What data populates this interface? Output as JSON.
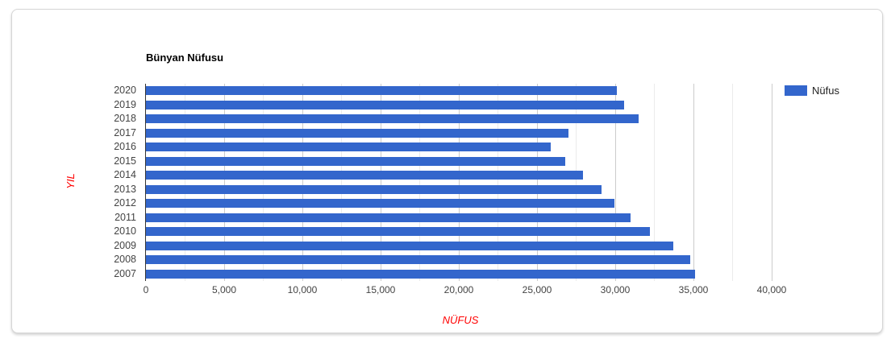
{
  "chart_data": {
    "type": "bar",
    "orientation": "horizontal",
    "title": "Bünyan Nüfusu",
    "xlabel": "NÜFUS",
    "ylabel": "YIL",
    "categories": [
      "2020",
      "2019",
      "2018",
      "2017",
      "2016",
      "2015",
      "2014",
      "2013",
      "2012",
      "2011",
      "2010",
      "2009",
      "2008",
      "2007"
    ],
    "values": [
      30100,
      30550,
      31500,
      27000,
      25900,
      26800,
      27950,
      29100,
      29950,
      31000,
      32200,
      33700,
      34800,
      35100
    ],
    "series_name": "Nüfus",
    "xlim": [
      0,
      40155
    ],
    "xticks": [
      0,
      5000,
      10000,
      15000,
      20000,
      25000,
      30000,
      35000,
      40000
    ],
    "xtick_labels": [
      "0",
      "5,000",
      "10,000",
      "15,000",
      "20,000",
      "25,000",
      "30,000",
      "35,000",
      "40,000"
    ],
    "gridlines": {
      "minor_step": 2500,
      "major_step": 5000,
      "max": 40000
    },
    "grid": true,
    "legend": {
      "position": "right",
      "entries": [
        {
          "label": "Nüfus",
          "color": "#3366cc"
        }
      ]
    },
    "colors": {
      "bar": "#3366cc",
      "grid_major": "#cccccc",
      "grid_minor": "#ebebeb",
      "baseline": "#333333",
      "tick_text": "#444444",
      "title_text": "#000000",
      "axis_title_text": "#ff0000",
      "legend_text": "#222222"
    }
  }
}
